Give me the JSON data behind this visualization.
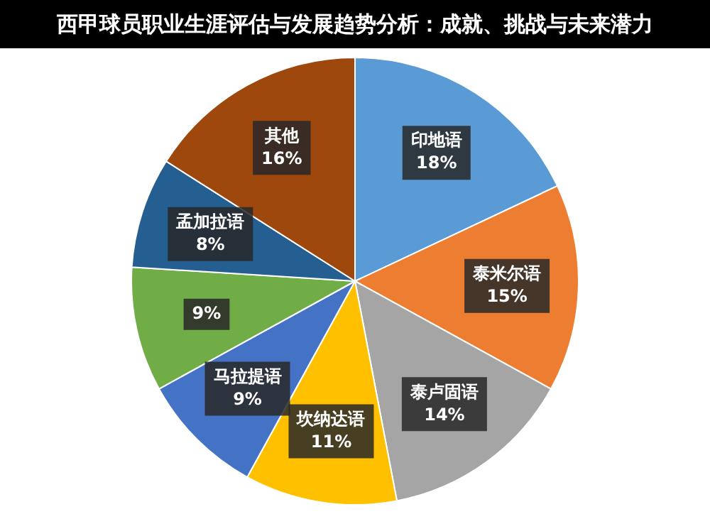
{
  "chart_data": {
    "type": "pie",
    "title": "西甲球员职业生涯评估与发展趋势分析：成就、挑战与未来潜力",
    "categories": [
      "印地语",
      "泰米尔语",
      "泰卢固语",
      "坎纳达语",
      "马拉提语",
      null,
      "孟加拉语",
      "其他"
    ],
    "values": [
      18,
      15,
      14,
      11,
      9,
      9,
      8,
      16
    ],
    "value_labels": [
      "18%",
      "15%",
      "14%",
      "11%",
      "9%",
      "9%",
      "8%",
      "16%"
    ],
    "colors": [
      "#5b9bd5",
      "#ed7d31",
      "#a5a5a5",
      "#ffc000",
      "#4472c4",
      "#70ad47",
      "#255e91",
      "#9e480e"
    ],
    "legend": false
  }
}
